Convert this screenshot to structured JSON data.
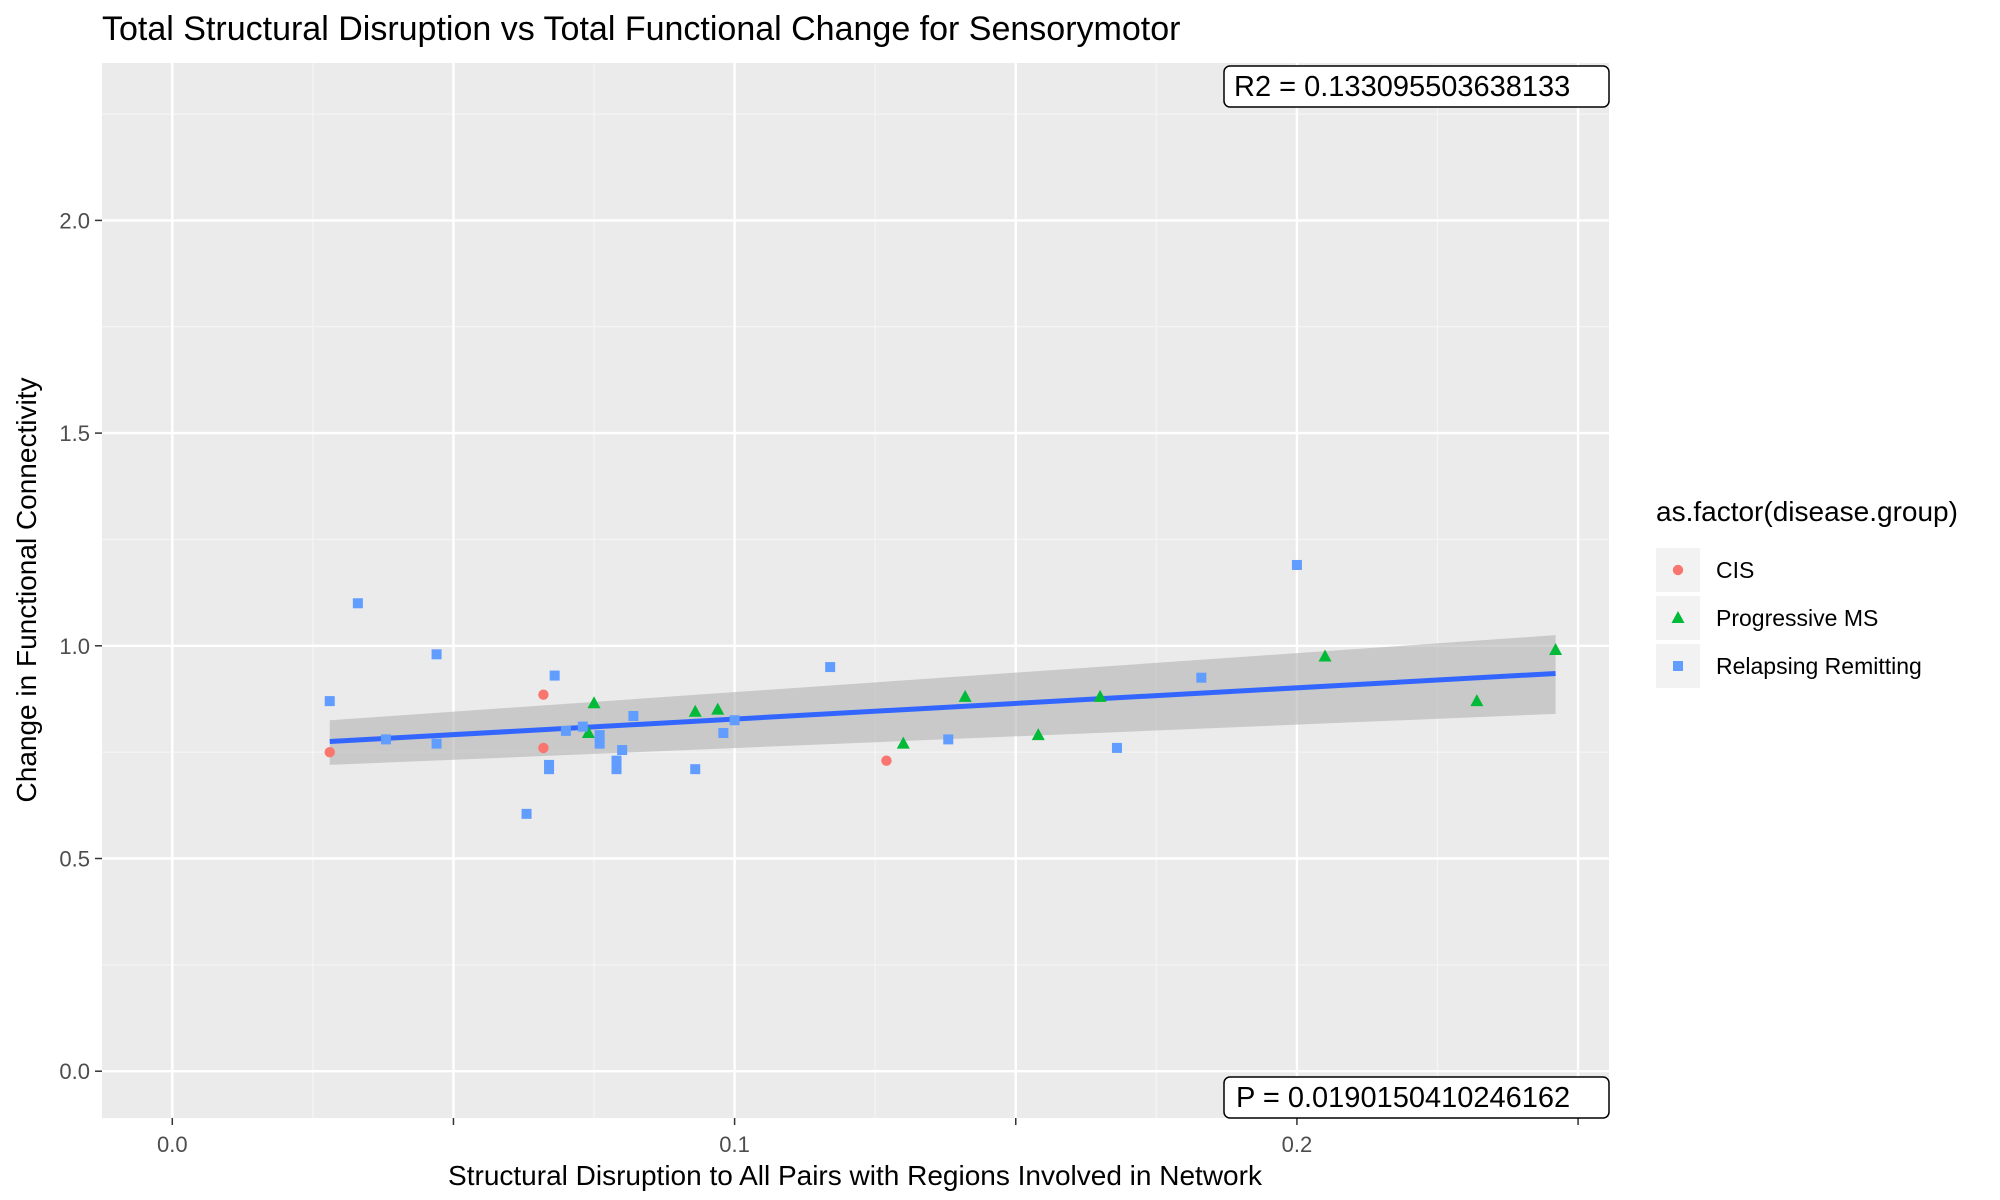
{
  "chart_data": {
    "type": "scatter",
    "title": "Total Structural Disruption vs Total Functional Change for Sensorymotor",
    "xlabel": "Structural Disruption to All Pairs with Regions Involved in Network",
    "ylabel": "Change in Functional Connectivity",
    "xlim": [
      -0.0125,
      0.2555
    ],
    "ylim": [
      -0.11,
      2.37
    ],
    "x_ticks": [
      0.0,
      0.05,
      0.1,
      0.15,
      0.2,
      0.25
    ],
    "x_tick_labels": [
      "0.0",
      "",
      "0.1",
      "",
      "0.2",
      ""
    ],
    "y_ticks": [
      0.0,
      0.5,
      1.0,
      1.5,
      2.0
    ],
    "y_tick_labels": [
      "0.0",
      "0.5",
      "1.0",
      "1.5",
      "2.0"
    ],
    "grid": true,
    "legend": {
      "title": "as.factor(disease.group)",
      "position": "right",
      "entries": [
        "CIS",
        "Progressive MS",
        "Relapsing Remitting"
      ]
    },
    "series": [
      {
        "name": "CIS",
        "color": "#F8766D",
        "shape": "circle",
        "points": [
          {
            "x": 0.028,
            "y": 0.75
          },
          {
            "x": 0.066,
            "y": 0.885
          },
          {
            "x": 0.066,
            "y": 0.76
          },
          {
            "x": 0.127,
            "y": 0.73
          }
        ]
      },
      {
        "name": "Progressive MS",
        "color": "#00BA38",
        "shape": "triangle",
        "points": [
          {
            "x": 0.075,
            "y": 0.865
          },
          {
            "x": 0.074,
            "y": 0.795
          },
          {
            "x": 0.093,
            "y": 0.845
          },
          {
            "x": 0.097,
            "y": 0.85
          },
          {
            "x": 0.13,
            "y": 0.77
          },
          {
            "x": 0.141,
            "y": 0.88
          },
          {
            "x": 0.154,
            "y": 0.79
          },
          {
            "x": 0.165,
            "y": 0.88
          },
          {
            "x": 0.205,
            "y": 0.975
          },
          {
            "x": 0.232,
            "y": 0.87
          },
          {
            "x": 0.246,
            "y": 0.99
          }
        ]
      },
      {
        "name": "Relapsing Remitting",
        "color": "#619CFF",
        "shape": "square",
        "points": [
          {
            "x": 0.028,
            "y": 0.87
          },
          {
            "x": 0.033,
            "y": 1.1
          },
          {
            "x": 0.038,
            "y": 0.78
          },
          {
            "x": 0.047,
            "y": 0.98
          },
          {
            "x": 0.047,
            "y": 0.77
          },
          {
            "x": 0.063,
            "y": 0.605
          },
          {
            "x": 0.067,
            "y": 0.72
          },
          {
            "x": 0.067,
            "y": 0.71
          },
          {
            "x": 0.068,
            "y": 0.93
          },
          {
            "x": 0.07,
            "y": 0.8
          },
          {
            "x": 0.073,
            "y": 0.81
          },
          {
            "x": 0.076,
            "y": 0.77
          },
          {
            "x": 0.076,
            "y": 0.79
          },
          {
            "x": 0.079,
            "y": 0.71
          },
          {
            "x": 0.079,
            "y": 0.73
          },
          {
            "x": 0.08,
            "y": 0.755
          },
          {
            "x": 0.082,
            "y": 0.835
          },
          {
            "x": 0.093,
            "y": 0.71
          },
          {
            "x": 0.098,
            "y": 0.795
          },
          {
            "x": 0.1,
            "y": 0.825
          },
          {
            "x": 0.117,
            "y": 0.95
          },
          {
            "x": 0.138,
            "y": 0.78
          },
          {
            "x": 0.168,
            "y": 0.76
          },
          {
            "x": 0.183,
            "y": 0.925
          },
          {
            "x": 0.2,
            "y": 1.19
          }
        ]
      }
    ],
    "regression": {
      "color": "#3366FF",
      "x_range": [
        0.028,
        0.246
      ],
      "y_at_start": 0.775,
      "y_at_end": 0.935,
      "ci_lower": [
        0.72,
        0.84
      ],
      "ci_upper": [
        0.825,
        1.025
      ],
      "ci_color": "#b3b3b3"
    },
    "annotations": [
      {
        "text": "R2 =  0.133095503638133",
        "position": "top-right"
      },
      {
        "text": "P =  0.0190150410246162",
        "position": "bottom-right"
      }
    ]
  }
}
